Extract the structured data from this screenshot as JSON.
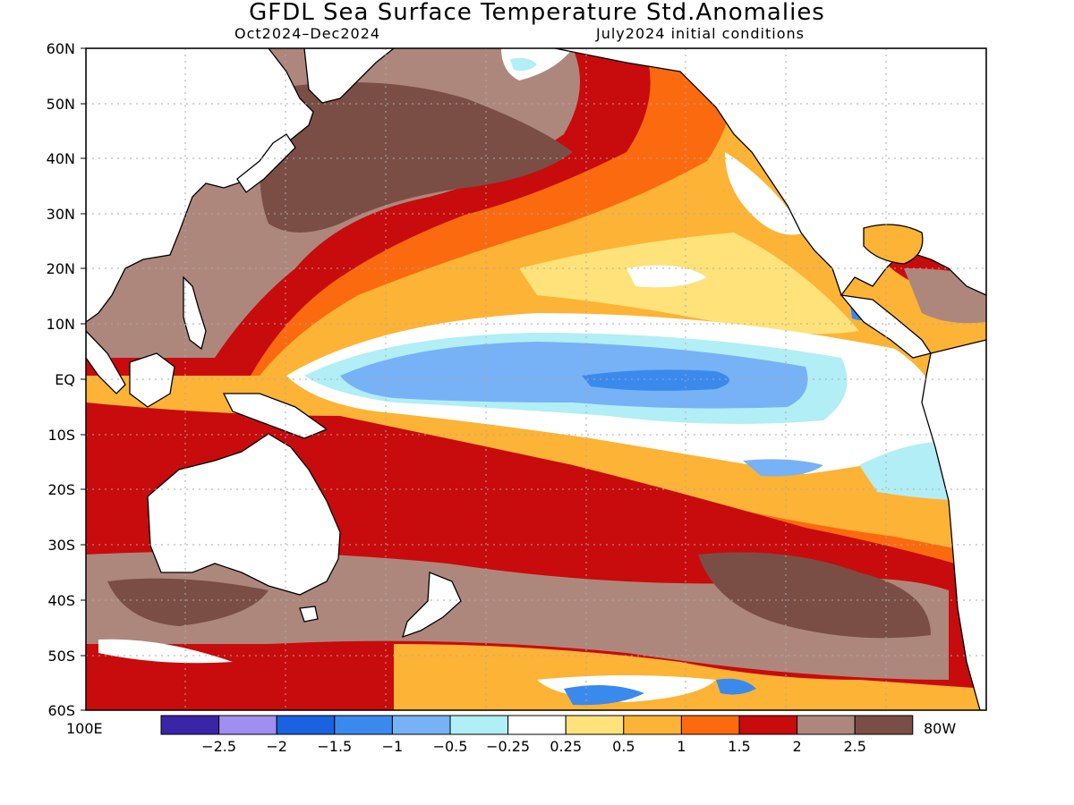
{
  "header": {
    "title": "GFDL Sea Surface Temperature Std.Anomalies",
    "period": "Oct2024–Dec2024",
    "initial_conditions": "July2024 initial conditions"
  },
  "axes": {
    "lat_labels": [
      "60N",
      "50N",
      "40N",
      "30N",
      "20N",
      "10N",
      "EQ",
      "10S",
      "20S",
      "30S",
      "40S",
      "50S",
      "60S"
    ],
    "lon_left": "100E",
    "lon_right": "80W"
  },
  "colorbar": {
    "levels": [
      "−2.5",
      "−2",
      "−1.5",
      "−1",
      "−0.5",
      "−0.25",
      "0.25",
      "0.5",
      "1",
      "1.5",
      "2",
      "2.5"
    ],
    "colors": [
      "#3a25a8",
      "#a08ff0",
      "#1a62e0",
      "#3a8aee",
      "#77b2f6",
      "#b2eef6",
      "#ffffff",
      "#ffe27a",
      "#fdb335",
      "#fb6a0e",
      "#c80b0c",
      "#ae877c",
      "#7a4e45"
    ]
  },
  "map_colors": {
    "land": "#ffffff",
    "coast": "#000000",
    "grid": "#aaaaaa"
  }
}
